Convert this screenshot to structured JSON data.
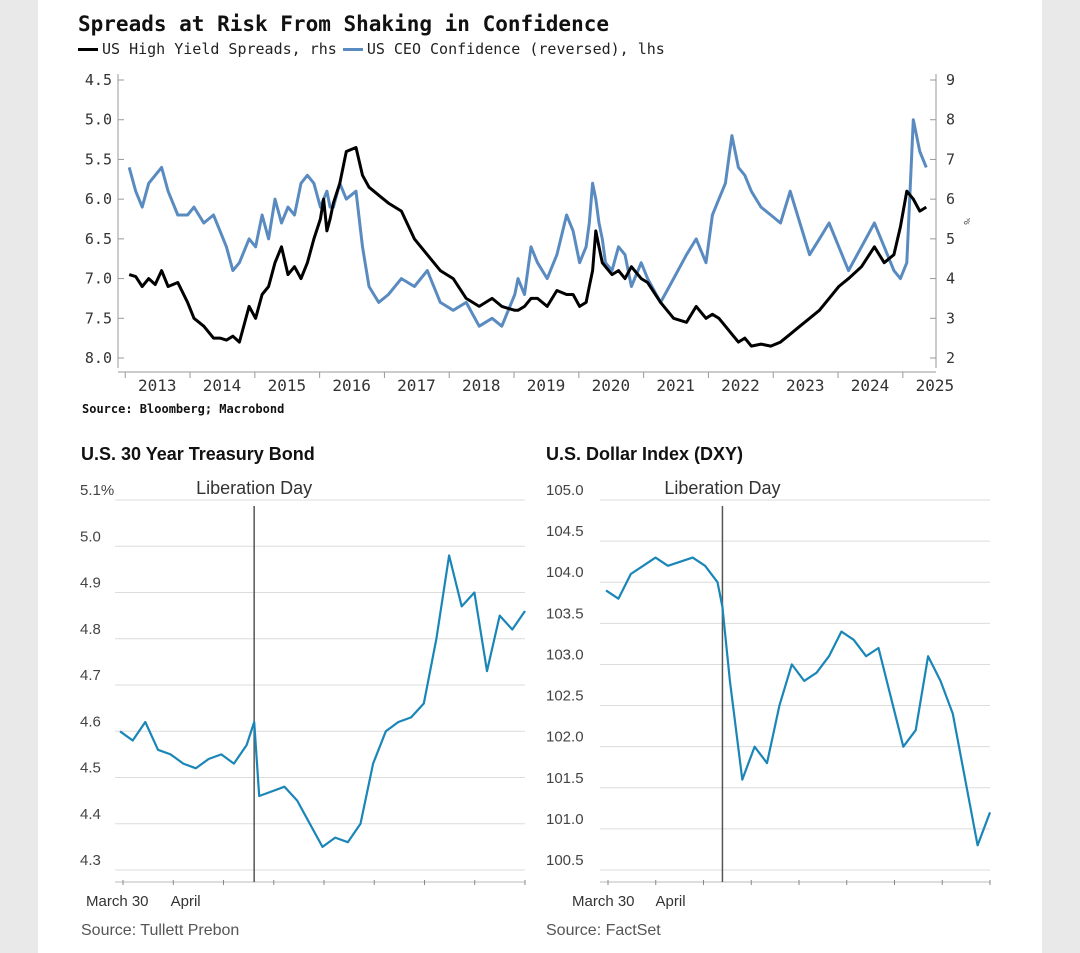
{
  "top_chart": {
    "title": "Spreads at Risk From Shaking in Confidence",
    "source": "Source: Bloomberg; Macrobond",
    "colors": {
      "black_series": "#000000",
      "blue_series": "#5a8bc0"
    },
    "chart_data": {
      "type": "line",
      "title": "Spreads at Risk From Shaking in Confidence",
      "x_ticks": [
        "2013",
        "2014",
        "2015",
        "2016",
        "2017",
        "2018",
        "2019",
        "2020",
        "2021",
        "2022",
        "2023",
        "2024",
        "2025"
      ],
      "x_range": [
        2012.95,
        2025.45
      ],
      "lhs_ticks": [
        "4.5",
        "5.0",
        "5.5",
        "6.0",
        "6.5",
        "7.0",
        "7.5",
        "8.0"
      ],
      "lhs_range": [
        4.5,
        8.0
      ],
      "lhs_reversed": true,
      "rhs_ticks": [
        "9",
        "8",
        "7",
        "6",
        "5",
        "4",
        "3",
        "2"
      ],
      "rhs_range": [
        2,
        9
      ],
      "rhs_unit": "%",
      "series": [
        {
          "name": "US High Yield Spreads, rhs",
          "axis": "rhs",
          "x": [
            2013.0,
            2013.1,
            2013.2,
            2013.3,
            2013.4,
            2013.5,
            2013.6,
            2013.75,
            2013.9,
            2014.0,
            2014.15,
            2014.3,
            2014.4,
            2014.5,
            2014.6,
            2014.7,
            2014.85,
            2014.95,
            2015.05,
            2015.15,
            2015.25,
            2015.35,
            2015.45,
            2015.55,
            2015.65,
            2015.75,
            2015.85,
            2015.95,
            2016.0,
            2016.05,
            2016.1,
            2016.15,
            2016.25,
            2016.35,
            2016.5,
            2016.6,
            2016.7,
            2016.85,
            2017.0,
            2017.2,
            2017.4,
            2017.6,
            2017.8,
            2018.0,
            2018.2,
            2018.4,
            2018.6,
            2018.75,
            2018.85,
            2018.95,
            2019.0,
            2019.1,
            2019.2,
            2019.3,
            2019.45,
            2019.6,
            2019.75,
            2019.85,
            2019.95,
            2020.05,
            2020.1,
            2020.15,
            2020.2,
            2020.25,
            2020.3,
            2020.35,
            2020.45,
            2020.55,
            2020.65,
            2020.75,
            2020.9,
            2021.0,
            2021.2,
            2021.4,
            2021.6,
            2021.75,
            2021.9,
            2022.0,
            2022.1,
            2022.2,
            2022.3,
            2022.4,
            2022.5,
            2022.6,
            2022.75,
            2022.9,
            2023.05,
            2023.2,
            2023.35,
            2023.5,
            2023.65,
            2023.8,
            2023.95,
            2024.1,
            2024.3,
            2024.5,
            2024.65,
            2024.8,
            2024.9,
            2025.0,
            2025.1,
            2025.2,
            2025.3
          ],
          "values": [
            4.1,
            4.05,
            3.8,
            4.0,
            3.85,
            4.2,
            3.8,
            3.9,
            3.4,
            3.0,
            2.8,
            2.5,
            2.5,
            2.45,
            2.55,
            2.4,
            3.3,
            3.0,
            3.6,
            3.8,
            4.4,
            4.8,
            4.1,
            4.3,
            4.0,
            4.4,
            5.0,
            5.5,
            6.0,
            5.2,
            5.5,
            5.9,
            6.4,
            7.2,
            7.3,
            6.6,
            6.3,
            6.1,
            5.9,
            5.7,
            5.0,
            4.6,
            4.2,
            4.0,
            3.5,
            3.3,
            3.5,
            3.3,
            3.25,
            3.2,
            3.2,
            3.3,
            3.5,
            3.5,
            3.3,
            3.7,
            3.6,
            3.6,
            3.3,
            3.4,
            3.8,
            4.2,
            5.2,
            4.8,
            4.4,
            4.3,
            4.1,
            4.2,
            4.0,
            4.3,
            4.0,
            3.9,
            3.4,
            3.0,
            2.9,
            3.3,
            3.0,
            3.1,
            3.0,
            2.8,
            2.6,
            2.4,
            2.5,
            2.3,
            2.35,
            2.3,
            2.4,
            2.6,
            2.8,
            3.0,
            3.2,
            3.5,
            3.8,
            4.0,
            4.3,
            4.8,
            4.4,
            4.6,
            5.3,
            6.2,
            6.0,
            5.7,
            5.8
          ]
        },
        {
          "name": "US CEO Confidence (reversed), lhs",
          "axis": "lhs",
          "x": [
            2013.0,
            2013.1,
            2013.2,
            2013.3,
            2013.4,
            2013.5,
            2013.6,
            2013.75,
            2013.9,
            2014.0,
            2014.15,
            2014.3,
            2014.4,
            2014.5,
            2014.6,
            2014.7,
            2014.85,
            2014.95,
            2015.05,
            2015.15,
            2015.25,
            2015.35,
            2015.45,
            2015.55,
            2015.65,
            2015.75,
            2015.85,
            2015.95,
            2016.0,
            2016.05,
            2016.1,
            2016.15,
            2016.25,
            2016.35,
            2016.5,
            2016.6,
            2016.7,
            2016.85,
            2017.0,
            2017.2,
            2017.4,
            2017.6,
            2017.8,
            2018.0,
            2018.2,
            2018.4,
            2018.6,
            2018.75,
            2018.85,
            2018.95,
            2019.0,
            2019.1,
            2019.2,
            2019.3,
            2019.45,
            2019.6,
            2019.75,
            2019.85,
            2019.95,
            2020.05,
            2020.1,
            2020.15,
            2020.2,
            2020.25,
            2020.3,
            2020.35,
            2020.45,
            2020.55,
            2020.65,
            2020.75,
            2020.9,
            2021.0,
            2021.2,
            2021.4,
            2021.6,
            2021.75,
            2021.9,
            2022.0,
            2022.1,
            2022.2,
            2022.3,
            2022.4,
            2022.5,
            2022.6,
            2022.75,
            2022.9,
            2023.05,
            2023.2,
            2023.35,
            2023.5,
            2023.65,
            2023.8,
            2023.95,
            2024.1,
            2024.3,
            2024.5,
            2024.65,
            2024.8,
            2024.9,
            2025.0,
            2025.1,
            2025.2,
            2025.3
          ],
          "values": [
            5.6,
            5.9,
            6.1,
            5.8,
            5.7,
            5.6,
            5.9,
            6.2,
            6.2,
            6.1,
            6.3,
            6.2,
            6.4,
            6.6,
            6.9,
            6.8,
            6.5,
            6.6,
            6.2,
            6.5,
            6.0,
            6.3,
            6.1,
            6.2,
            5.8,
            5.7,
            5.8,
            6.1,
            6.0,
            5.9,
            6.1,
            6.1,
            5.8,
            6.0,
            5.9,
            6.6,
            7.1,
            7.3,
            7.2,
            7.0,
            7.1,
            6.9,
            7.3,
            7.4,
            7.3,
            7.6,
            7.5,
            7.6,
            7.4,
            7.2,
            7.0,
            7.2,
            6.6,
            6.8,
            7.0,
            6.7,
            6.2,
            6.4,
            6.8,
            6.6,
            6.3,
            5.8,
            6.0,
            6.3,
            6.5,
            6.8,
            6.9,
            6.6,
            6.7,
            7.1,
            6.8,
            7.0,
            7.3,
            7.0,
            6.7,
            6.5,
            6.8,
            6.2,
            6.0,
            5.8,
            5.2,
            5.6,
            5.7,
            5.9,
            6.1,
            6.2,
            6.3,
            5.9,
            6.3,
            6.7,
            6.5,
            6.3,
            6.6,
            6.9,
            6.6,
            6.3,
            6.6,
            6.9,
            7.0,
            6.8,
            5.0,
            5.4,
            5.6
          ]
        }
      ]
    }
  },
  "bond_chart": {
    "title": "U.S. 30 Year Treasury Bond",
    "annotation": "Liberation Day",
    "source": "Source: Tullett Prebon",
    "colors": {
      "line": "#1a86b8"
    },
    "chart_data": {
      "type": "line",
      "y_ticks": [
        "5.1%",
        "5.0",
        "4.9",
        "4.8",
        "4.7",
        "4.6",
        "4.5",
        "4.4",
        "4.3"
      ],
      "y_range": [
        4.3,
        5.1
      ],
      "x_labels": [
        {
          "label": "March 30",
          "day": 0
        },
        {
          "label": "April",
          "day": 2
        }
      ],
      "x_range": [
        0,
        16
      ],
      "event_day": 5.3,
      "x": [
        0,
        0.5,
        1,
        1.5,
        2,
        2.5,
        3,
        3.5,
        4,
        4.5,
        5,
        5.3,
        5.5,
        6,
        6.5,
        7,
        7.5,
        8,
        8.5,
        9,
        9.5,
        10,
        10.5,
        11,
        11.5,
        12,
        12.5,
        13,
        13.5,
        14,
        14.5,
        15,
        15.5,
        16
      ],
      "values": [
        4.6,
        4.58,
        4.62,
        4.56,
        4.55,
        4.53,
        4.52,
        4.54,
        4.55,
        4.53,
        4.57,
        4.62,
        4.46,
        4.47,
        4.48,
        4.45,
        4.4,
        4.35,
        4.37,
        4.36,
        4.4,
        4.53,
        4.6,
        4.62,
        4.63,
        4.66,
        4.8,
        4.98,
        4.87,
        4.9,
        4.73,
        4.85,
        4.82,
        4.86
      ]
    }
  },
  "dxy_chart": {
    "title": "U.S. Dollar Index (DXY)",
    "annotation": "Liberation Day",
    "source": "Source: FactSet",
    "colors": {
      "line": "#1a86b8"
    },
    "chart_data": {
      "type": "line",
      "y_ticks": [
        "105.0",
        "104.5",
        "104.0",
        "103.5",
        "103.0",
        "102.5",
        "102.0",
        "101.5",
        "101.0",
        "100.5"
      ],
      "y_range": [
        100.5,
        105.0
      ],
      "x_labels": [
        {
          "label": "March 30",
          "day": 0
        },
        {
          "label": "April",
          "day": 2
        }
      ],
      "x_range": [
        0,
        15.5
      ],
      "event_day": 4.7,
      "x": [
        0,
        0.5,
        1,
        1.5,
        2,
        2.5,
        3,
        3.5,
        4,
        4.5,
        4.7,
        5,
        5.5,
        6,
        6.5,
        7,
        7.5,
        8,
        8.5,
        9,
        9.5,
        10,
        10.5,
        11,
        11.5,
        12,
        12.5,
        13,
        13.5,
        14,
        14.5,
        15,
        15.5
      ],
      "values": [
        103.9,
        103.8,
        104.1,
        104.2,
        104.3,
        104.2,
        104.25,
        104.3,
        104.2,
        104.0,
        103.7,
        102.8,
        101.6,
        102.0,
        101.8,
        102.5,
        103.0,
        102.8,
        102.9,
        103.1,
        103.4,
        103.3,
        103.1,
        103.2,
        102.6,
        102.0,
        102.2,
        103.1,
        102.8,
        102.4,
        101.6,
        100.8,
        101.2
      ]
    }
  }
}
